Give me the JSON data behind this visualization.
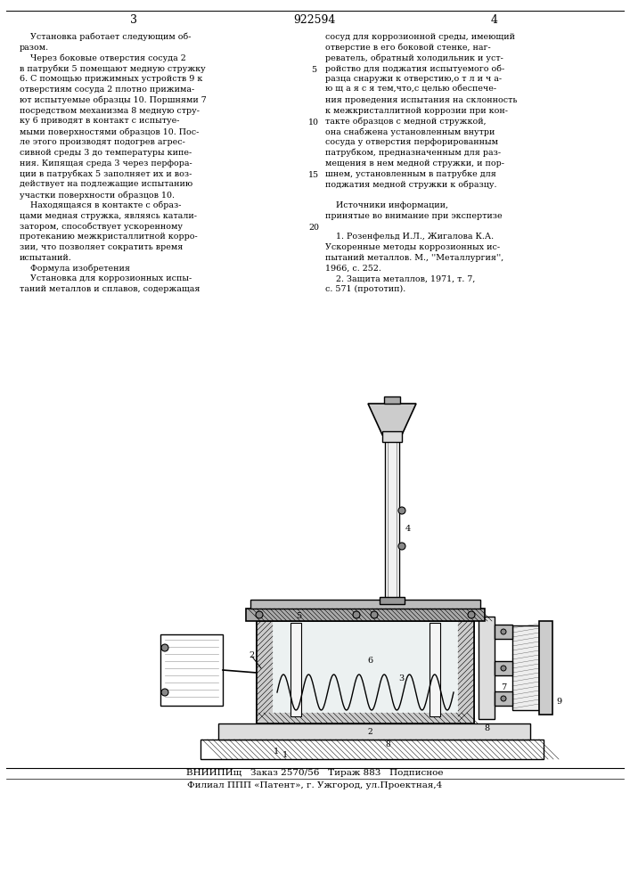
{
  "bg_color": "#ffffff",
  "page_width": 7.07,
  "page_height": 10.0,
  "header_page3": "3",
  "header_patent": "922594",
  "header_page4": "4",
  "header_fontsize": 9,
  "body_fontsize": 6.8,
  "left_col_lines": [
    "    Установка работает следующим об-",
    "разом.",
    "    Через боковые отверстия сосуда 2",
    "в патрубки 5 помещают медную стружку",
    "6. С помощью прижимных устройств 9 к",
    "отверстиям сосуда 2 плотно прижима-",
    "ют испытуемые образцы 10. Поршнями 7",
    "посредством механизма 8 медную стру-",
    "ку 6 приводят в контакт с испытуе-",
    "мыми поверхностями образцов 10. Пос-",
    "ле этого производят подогрев агрес-",
    "сивной среды 3 до температуры кипе-",
    "ния. Кипящая среда 3 через перфора-",
    "ции в патрубках 5 заполняет их и воз-",
    "действует на подлежащие испытанию",
    "участки поверхности образцов 10.",
    "    Находящаяся в контакте с образ-",
    "цами медная стружка, являясь катали-",
    "затором, способствует ускоренному",
    "протеканию межкристаллитной корро-",
    "зии, что позволяет сократить время",
    "испытаний.",
    "    Формула изобретения",
    "    Установка для коррозионных испы-",
    "таний металлов и сплавов, содержащая"
  ],
  "right_col_lines": [
    "сосуд для коррозионной среды, имеющий",
    "отверстие в его боковой стенке, наг-",
    "реватель, обратный холодильник и уст-",
    "ройство для поджатия испытуемого об-",
    "разца снаружи к отверстию,о т л и ч а-",
    "ю щ а я с я тем,что,с целью обеспече-",
    "ния проведения испытания на склонность",
    "к межкристаллитной коррозии при кон-",
    "такте образцов с медной стружкой,",
    "она снабжена установленным внутри",
    "сосуда у отверстия перфорированным",
    "патрубком, предназначенным для раз-",
    "мещения в нем медной стружки, и пор-",
    "шнем, установленным в патрубке для",
    "поджатия медной стружки к образцу.",
    "",
    "    Источники информации,",
    "принятые во внимание при экспертизе",
    "",
    "    1. Розенфельд И.Л., Жигалова К.А.",
    "Ускоренные методы коррозионных ис-",
    "пытаний металлов. М., ''Металлургия'',",
    "1966, с. 252.",
    "    2. Защита металлов, 1971, т. 7,",
    "с. 571 (прототип)."
  ],
  "line_numbers": [
    "5",
    "10",
    "15",
    "20"
  ],
  "line_number_rows": [
    4,
    9,
    14,
    19
  ],
  "footer_line1": "ВНИИПИщ   Заказ 2570/56   Тираж 883   Подписное",
  "footer_line2": "Филиал ППП «Патент», г. Ужгород, ул.Проектная,4",
  "footer_fontsize": 7.5
}
